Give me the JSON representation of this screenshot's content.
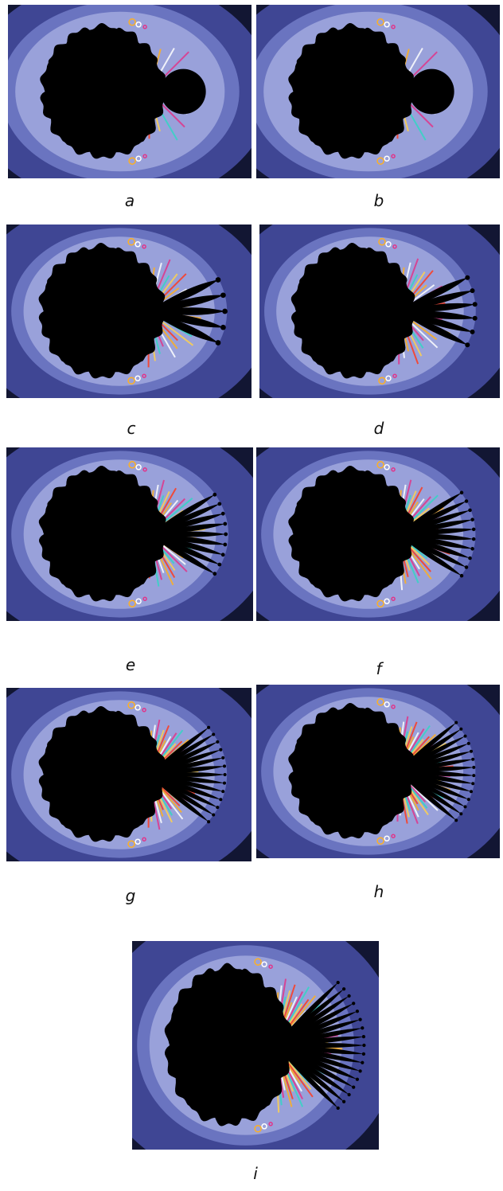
{
  "figure": {
    "panels": [
      {
        "id": "a",
        "label": "a",
        "petals": 1
      },
      {
        "id": "b",
        "label": "b",
        "petals": 1
      },
      {
        "id": "c",
        "label": "c",
        "petals": 5
      },
      {
        "id": "d",
        "label": "d",
        "petals": 6
      },
      {
        "id": "e",
        "label": "e",
        "petals": 9
      },
      {
        "id": "f",
        "label": "f",
        "petals": 10
      },
      {
        "id": "g",
        "label": "g",
        "petals": 13
      },
      {
        "id": "h",
        "label": "h",
        "petals": 14
      },
      {
        "id": "i",
        "label": "i",
        "petals": 17
      }
    ]
  },
  "colors": {
    "background": "#121633",
    "outer_band": "#3f4694",
    "inner_band": "#6a74c0",
    "halo": "#bfc6ee",
    "set": "#000000",
    "fire": [
      "#ff3b1f",
      "#ffb020",
      "#ffffff",
      "#e0358a",
      "#33d6c4",
      "#ffd24d"
    ]
  }
}
